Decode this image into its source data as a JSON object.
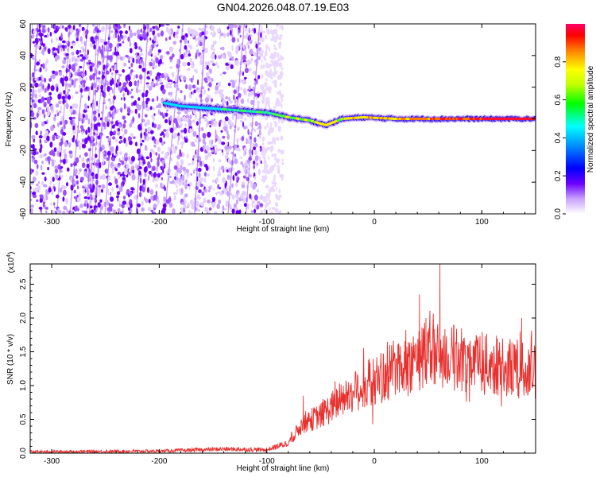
{
  "title": "GN04.2026.048.07.19.E03",
  "chart_data": [
    {
      "type": "heatmap",
      "xlabel": "Height of straight line (km)",
      "ylabel": "Frequency (Hz)",
      "xlim": [
        -320,
        150
      ],
      "ylim": [
        -60,
        60
      ],
      "xticks": [
        "-300",
        "-200",
        "-100",
        "0",
        "100"
      ],
      "yticks": [
        "-60",
        "-40",
        "-20",
        "0",
        "20",
        "40",
        "60"
      ],
      "colorbar": {
        "label": "Normalized spectral amplitude",
        "range": [
          0,
          1
        ],
        "ticks": [
          "0.0",
          "0.2",
          "0.4",
          "0.6",
          "0.8"
        ]
      },
      "ridge_points": [
        {
          "x": -195,
          "y": 10
        },
        {
          "x": -180,
          "y": 8
        },
        {
          "x": -160,
          "y": 7
        },
        {
          "x": -140,
          "y": 6
        },
        {
          "x": -120,
          "y": 5
        },
        {
          "x": -100,
          "y": 4
        },
        {
          "x": -80,
          "y": 1
        },
        {
          "x": -60,
          "y": -1
        },
        {
          "x": -45,
          "y": -4
        },
        {
          "x": -30,
          "y": 0
        },
        {
          "x": -10,
          "y": 1
        },
        {
          "x": 20,
          "y": 0
        },
        {
          "x": 60,
          "y": 0
        },
        {
          "x": 100,
          "y": 0
        },
        {
          "x": 150,
          "y": 0
        }
      ],
      "noise_band": {
        "x_start": -320,
        "x_end": -105
      }
    },
    {
      "type": "line",
      "xlabel": "Height of straight line (km)",
      "ylabel": "SNR (10 * v/v)",
      "y_scale_label": "(x10",
      "y_scale_exp": "4",
      "y_scale_close": ")",
      "xlim": [
        -320,
        150
      ],
      "ylim": [
        0,
        2.8
      ],
      "xticks": [
        "-300",
        "-200",
        "-100",
        "0",
        "100"
      ],
      "yticks": [
        "0.0",
        "0.5",
        "1.0",
        "1.5",
        "2.0",
        "2.5"
      ],
      "color": "#e8302e",
      "envelope": [
        {
          "x": -320,
          "y": 0.02
        },
        {
          "x": -200,
          "y": 0.03
        },
        {
          "x": -140,
          "y": 0.06
        },
        {
          "x": -100,
          "y": 0.05
        },
        {
          "x": -80,
          "y": 0.15
        },
        {
          "x": -66,
          "y": 0.45
        },
        {
          "x": -50,
          "y": 0.55
        },
        {
          "x": -30,
          "y": 0.8
        },
        {
          "x": -10,
          "y": 1.0
        },
        {
          "x": 10,
          "y": 1.15
        },
        {
          "x": 30,
          "y": 1.35
        },
        {
          "x": 50,
          "y": 1.45
        },
        {
          "x": 80,
          "y": 1.4
        },
        {
          "x": 110,
          "y": 1.3
        },
        {
          "x": 150,
          "y": 1.2
        }
      ],
      "peaks": [
        {
          "x": -66,
          "y": 0.85
        },
        {
          "x": 42,
          "y": 2.35
        },
        {
          "x": 48,
          "y": 2.0
        },
        {
          "x": 61,
          "y": 2.8
        },
        {
          "x": 137,
          "y": 2.0
        }
      ]
    }
  ]
}
